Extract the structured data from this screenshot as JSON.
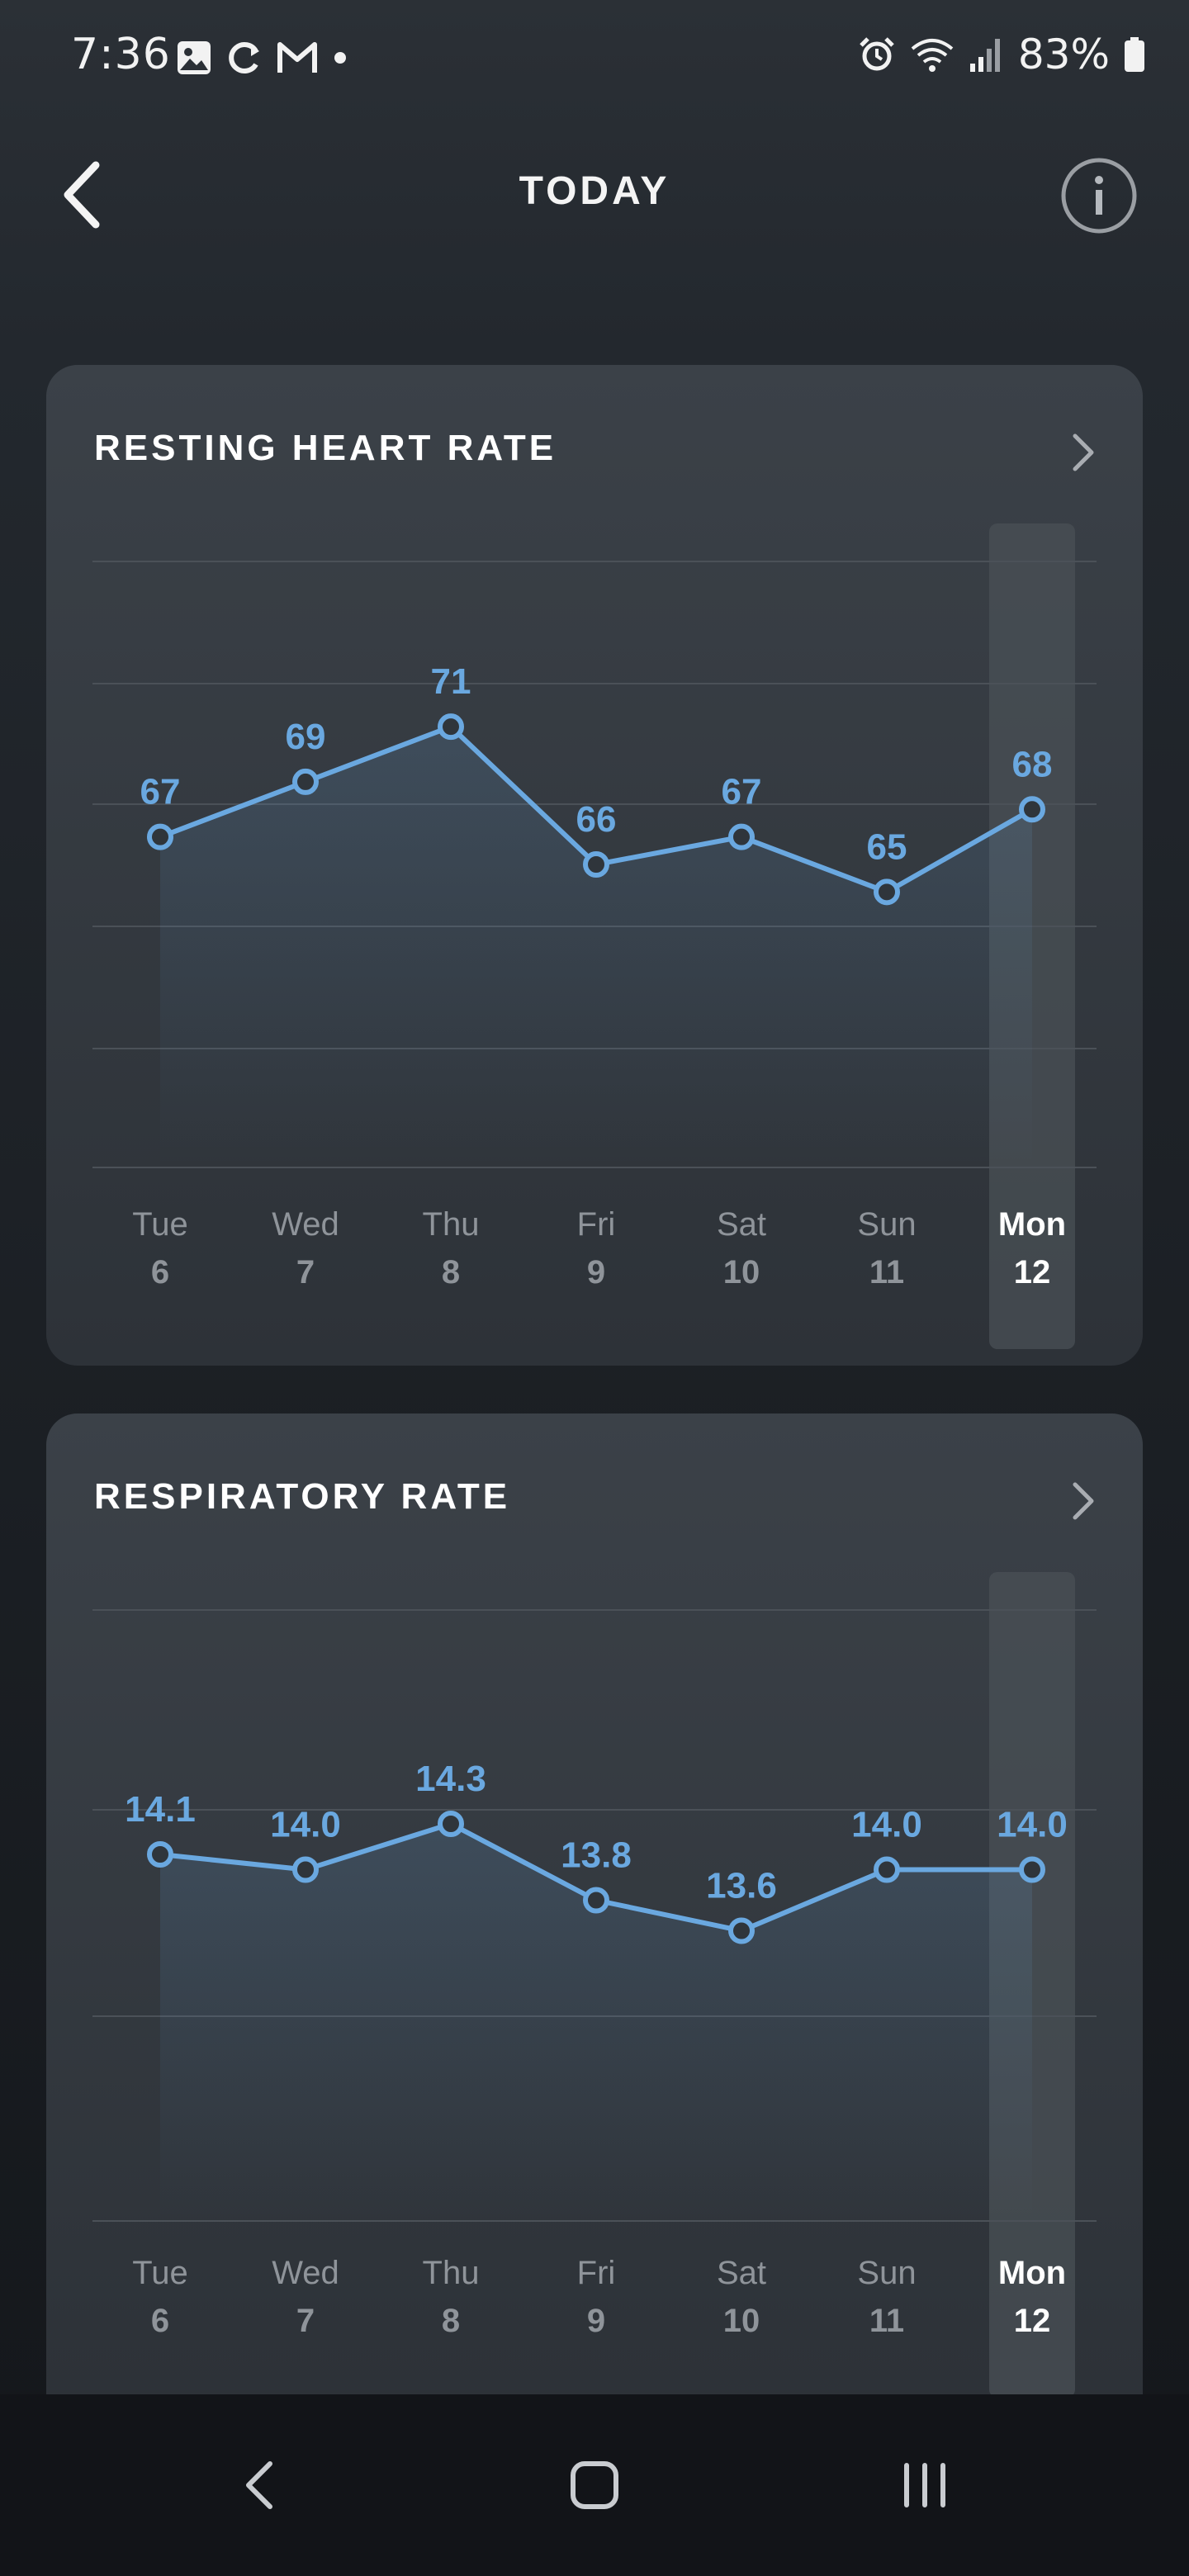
{
  "status_bar": {
    "time": "7:36",
    "battery": "83%",
    "left_icons": [
      "image-icon",
      "sync-icon",
      "gmail-icon",
      "dot-icon"
    ],
    "right_icons": [
      "alarm-icon",
      "wifi-icon",
      "signal-icon",
      "battery-icon"
    ]
  },
  "header": {
    "title": "TODAY",
    "back_icon": "chevron-left-icon",
    "info_icon": "info-icon"
  },
  "colors": {
    "accent": "#6aa8e0",
    "card_bg": "#363c43",
    "highlight_column": "#4a5056"
  },
  "cards": [
    {
      "title": "RESTING HEART RATE",
      "chevron_icon": "chevron-right-icon"
    },
    {
      "title": "RESPIRATORY RATE",
      "chevron_icon": "chevron-right-icon"
    }
  ],
  "chart_data": [
    {
      "type": "line",
      "title": "RESTING HEART RATE",
      "categories": [
        "Tue 6",
        "Wed 7",
        "Thu 8",
        "Fri 9",
        "Sat 10",
        "Sun 11",
        "Mon 12"
      ],
      "days": [
        "Tue",
        "Wed",
        "Thu",
        "Fri",
        "Sat",
        "Sun",
        "Mon"
      ],
      "dates": [
        "6",
        "7",
        "8",
        "9",
        "10",
        "11",
        "12"
      ],
      "values": [
        67,
        69,
        71,
        66,
        67,
        65,
        68
      ],
      "labels": [
        "67",
        "69",
        "71",
        "66",
        "67",
        "65",
        "68"
      ],
      "highlighted": "Mon 12",
      "ylim": [
        55,
        77
      ],
      "grid": true
    },
    {
      "type": "line",
      "title": "RESPIRATORY RATE",
      "categories": [
        "Tue 6",
        "Wed 7",
        "Thu 8",
        "Fri 9",
        "Sat 10",
        "Sun 11",
        "Mon 12"
      ],
      "days": [
        "Tue",
        "Wed",
        "Thu",
        "Fri",
        "Sat",
        "Sun",
        "Mon"
      ],
      "dates": [
        "6",
        "7",
        "8",
        "9",
        "10",
        "11",
        "12"
      ],
      "values": [
        14.1,
        14.0,
        14.3,
        13.8,
        13.6,
        14.0,
        14.0
      ],
      "labels": [
        "14.1",
        "14.0",
        "14.3",
        "13.8",
        "13.6",
        "14.0",
        "14.0"
      ],
      "highlighted": "Mon 12",
      "ylim": [
        11.7,
        15.7
      ],
      "grid": true
    }
  ],
  "nav_bar": {
    "buttons": [
      "back-nav-icon",
      "home-nav-icon",
      "recents-nav-icon"
    ]
  }
}
